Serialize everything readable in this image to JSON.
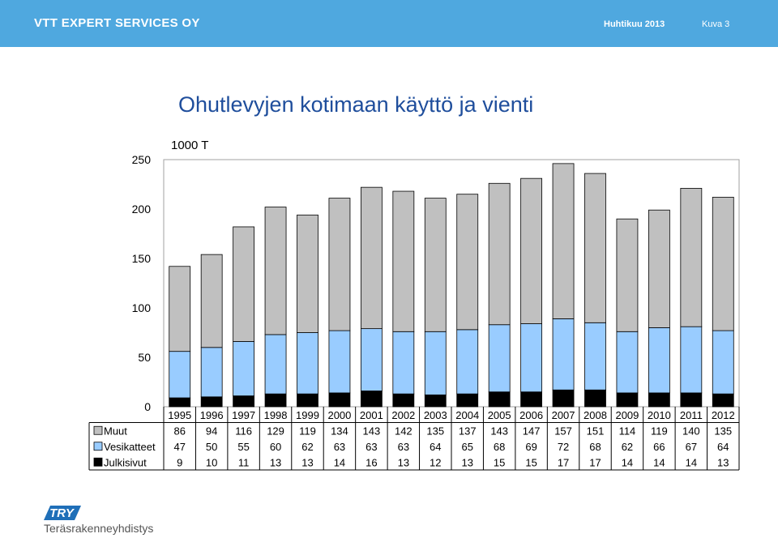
{
  "header": {
    "company": "VTT EXPERT SERVICES OY",
    "date": "Huhtikuu 2013",
    "slide": "Kuva 3"
  },
  "footer": {
    "logo_text": "TRY",
    "association": "Teräsrakenneyhdistys"
  },
  "colors": {
    "muut": "#c0c0c0",
    "vesikatteet": "#99ccff",
    "julkisivut": "#000000",
    "header": "#4fa8df",
    "title": "#1f4e9c"
  },
  "chart_data": {
    "type": "bar",
    "stacked": true,
    "title": "Ohutlevyjen kotimaan käyttö ja vienti",
    "ylabel": "1000 T",
    "xlabel": "",
    "ylim": [
      0,
      250
    ],
    "yticks": [
      "0",
      "50",
      "100",
      "150",
      "200",
      "250"
    ],
    "categories": [
      "1995",
      "1996",
      "1997",
      "1998",
      "1999",
      "2000",
      "2001",
      "2002",
      "2003",
      "2004",
      "2005",
      "2006",
      "2007",
      "2008",
      "2009",
      "2010",
      "2011",
      "2012"
    ],
    "series": [
      {
        "name": "Julkisivut",
        "values": [
          9,
          10,
          11,
          13,
          13,
          14,
          16,
          13,
          12,
          13,
          15,
          15,
          17,
          17,
          14,
          14,
          14,
          13
        ]
      },
      {
        "name": "Vesikatteet",
        "values": [
          47,
          50,
          55,
          60,
          62,
          63,
          63,
          63,
          64,
          65,
          68,
          69,
          72,
          68,
          62,
          66,
          67,
          64
        ]
      },
      {
        "name": "Muut",
        "values": [
          86,
          94,
          116,
          129,
          119,
          134,
          143,
          142,
          135,
          137,
          143,
          147,
          157,
          151,
          114,
          119,
          140,
          135
        ]
      }
    ],
    "table_rows": [
      "Muut",
      "Vesikatteet",
      "Julkisivut"
    ]
  }
}
